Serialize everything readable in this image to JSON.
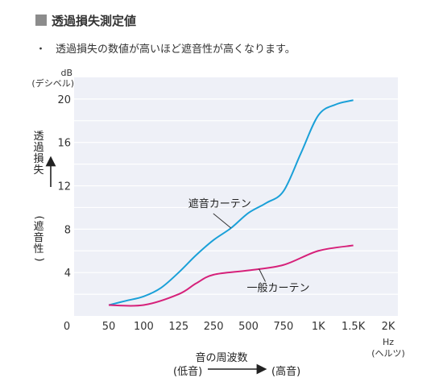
{
  "heading": {
    "text": "透過損失測定値",
    "marker_color": "#8c8c8c"
  },
  "note": {
    "bullet": "・",
    "text": "透過損失の数値が高いほど遮音性が高くなります。"
  },
  "chart_data": {
    "type": "line",
    "categories": [
      "0",
      "50",
      "100",
      "125",
      "250",
      "500",
      "750",
      "1K",
      "1.5K",
      "2K"
    ],
    "ylim": [
      0,
      22
    ],
    "yticks": [
      0,
      4,
      8,
      12,
      16,
      20
    ],
    "y_unit": [
      "dB",
      "(デシベル)"
    ],
    "x_unit": [
      "Hz",
      "(ヘルツ)"
    ],
    "ylabel_chars": [
      "透",
      "過",
      "損",
      "失",
      "(",
      "遮",
      "音",
      "性",
      ")"
    ],
    "xlabel_title": "音の周波数",
    "xlabel_low": "(低音)",
    "xlabel_high": "(高音)",
    "grid": true,
    "background": "#eef0f7",
    "grid_color": "#ffffff",
    "series": [
      {
        "name": "遮音カーテン",
        "color": "#1aa0d8",
        "points": [
          [
            1,
            1
          ],
          [
            1.5,
            1.4
          ],
          [
            2,
            1.8
          ],
          [
            2.5,
            2.6
          ],
          [
            3,
            4
          ],
          [
            3.5,
            5.6
          ],
          [
            4,
            7
          ],
          [
            4.5,
            8.1
          ],
          [
            5,
            9.5
          ],
          [
            5.5,
            10.4
          ],
          [
            6,
            11.5
          ],
          [
            6.5,
            15
          ],
          [
            7,
            18.5
          ],
          [
            7.5,
            19.5
          ],
          [
            8,
            19.9
          ]
        ]
      },
      {
        "name": "一般カーテン",
        "color": "#d6217a",
        "points": [
          [
            1,
            1
          ],
          [
            2,
            1
          ],
          [
            3,
            2
          ],
          [
            3.5,
            3
          ],
          [
            4,
            3.8
          ],
          [
            5,
            4.2
          ],
          [
            6,
            4.7
          ],
          [
            7,
            6
          ],
          [
            8,
            6.5
          ]
        ]
      }
    ],
    "annotations": [
      {
        "text": "遮音カーテン",
        "series": 0,
        "at": 4.5
      },
      {
        "text": "一般カーテン",
        "series": 1,
        "at": 5.3
      }
    ]
  }
}
